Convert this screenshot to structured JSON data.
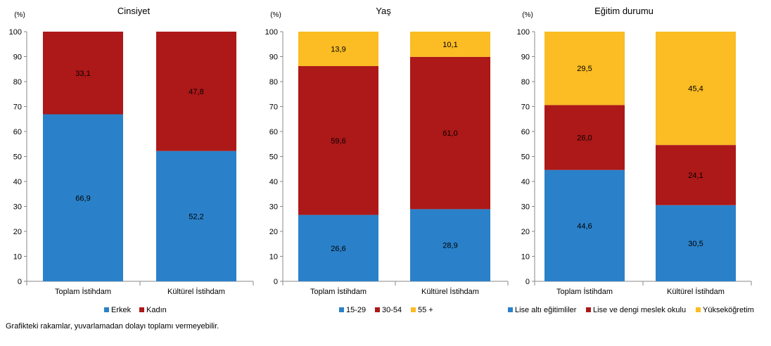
{
  "colors": {
    "blue": "#2a81c9",
    "red": "#ad1818",
    "yellow": "#fbbc24",
    "axis": "#888888"
  },
  "footnote": "Grafikteki rakamlar, yuvarlamadan dolayı toplamı vermeyebilir.",
  "chart_data": [
    {
      "type": "bar",
      "stacked": true,
      "title": "Cinsiyet",
      "ylabel": "(%)",
      "ylim": [
        0,
        100
      ],
      "yticks": [
        0,
        10,
        20,
        30,
        40,
        50,
        60,
        70,
        80,
        90,
        100
      ],
      "categories": [
        "Toplam İstihdam",
        "Kültürel İstihdam"
      ],
      "series": [
        {
          "name": "Erkek",
          "color": "#2a81c9",
          "values": [
            66.9,
            52.2
          ],
          "labels": [
            "66,9",
            "52,2"
          ]
        },
        {
          "name": "Kadın",
          "color": "#ad1818",
          "values": [
            33.1,
            47.8
          ],
          "labels": [
            "33,1",
            "47,8"
          ]
        }
      ],
      "legend": "bottom"
    },
    {
      "type": "bar",
      "stacked": true,
      "title": "Yaş",
      "ylabel": "(%)",
      "ylim": [
        0,
        100
      ],
      "yticks": [
        0,
        10,
        20,
        30,
        40,
        50,
        60,
        70,
        80,
        90,
        100
      ],
      "categories": [
        "Toplam İstihdam",
        "Kültürel İstihdam"
      ],
      "series": [
        {
          "name": "15-29",
          "color": "#2a81c9",
          "values": [
            26.6,
            28.9
          ],
          "labels": [
            "26,6",
            "28,9"
          ]
        },
        {
          "name": "30-54",
          "color": "#ad1818",
          "values": [
            59.6,
            61.0
          ],
          "labels": [
            "59,6",
            "61,0"
          ]
        },
        {
          "name": "55 +",
          "color": "#fbbc24",
          "values": [
            13.9,
            10.1
          ],
          "labels": [
            "13,9",
            "10,1"
          ]
        }
      ],
      "legend": "bottom"
    },
    {
      "type": "bar",
      "stacked": true,
      "title": "Eğitim durumu",
      "ylabel": "(%)",
      "ylim": [
        0,
        100
      ],
      "yticks": [
        0,
        10,
        20,
        30,
        40,
        50,
        60,
        70,
        80,
        90,
        100
      ],
      "categories": [
        "Toplam İstihdam",
        "Kültürel İstihdam"
      ],
      "series": [
        {
          "name": "Lise altı eğitimliler",
          "color": "#2a81c9",
          "values": [
            44.6,
            30.5
          ],
          "labels": [
            "44,6",
            "30,5"
          ]
        },
        {
          "name": "Lise ve dengi meslek okulu",
          "color": "#ad1818",
          "values": [
            26.0,
            24.1
          ],
          "labels": [
            "26,0",
            "24,1"
          ]
        },
        {
          "name": "Yükseköğretim",
          "color": "#fbbc24",
          "values": [
            29.5,
            45.4
          ],
          "labels": [
            "29,5",
            "45,4"
          ]
        }
      ],
      "legend": "bottom"
    }
  ]
}
